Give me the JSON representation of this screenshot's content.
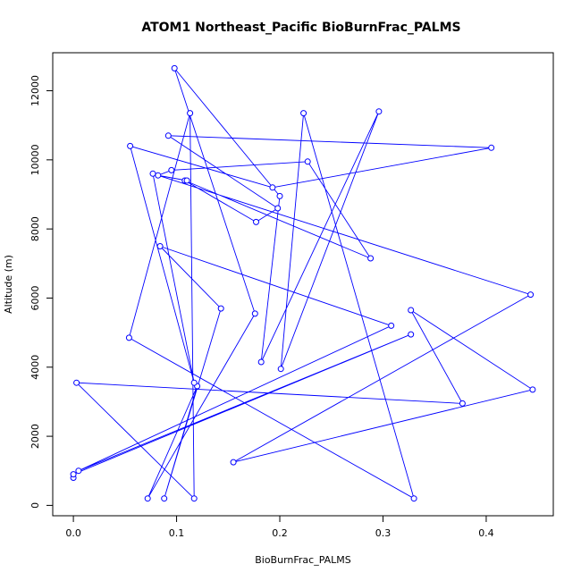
{
  "chart_data": {
    "type": "line",
    "title": "ATOM1 Northeast_Pacific BioBurnFrac_PALMS",
    "xlabel": "BioBurnFrac_PALMS",
    "ylabel": "Altitude (m)",
    "xlim": [
      -0.02,
      0.465
    ],
    "ylim": [
      -300,
      13100
    ],
    "xticks": [
      0.0,
      0.1,
      0.2,
      0.3,
      0.4
    ],
    "xtick_labels": [
      "0.0",
      "0.1",
      "0.2",
      "0.3",
      "0.4"
    ],
    "yticks": [
      0,
      2000,
      4000,
      6000,
      8000,
      10000,
      12000
    ],
    "ytick_labels": [
      "0",
      "2000",
      "4000",
      "6000",
      "8000",
      "10000",
      "12000"
    ],
    "grid": false,
    "line_color": "#0000ff",
    "marker": "open-circle",
    "series": [
      {
        "x": [
          0.0,
          0.0,
          0.327,
          0.005,
          0.308,
          0.084,
          0.143,
          0.088,
          0.12,
          0.072,
          0.176,
          0.098,
          0.2,
          0.182,
          0.296,
          0.201,
          0.223,
          0.33,
          0.054,
          0.113,
          0.117,
          0.003,
          0.377,
          0.327,
          0.445,
          0.155,
          0.443,
          0.077,
          0.117,
          0.055,
          0.193,
          0.405,
          0.092,
          0.198,
          0.177,
          0.108,
          0.288,
          0.227,
          0.095,
          0.082,
          0.11
        ],
        "y": [
          800,
          900,
          4950,
          1000,
          5200,
          7500,
          5700,
          200,
          3450,
          200,
          5550,
          12650,
          8950,
          4150,
          11400,
          3950,
          11350,
          200,
          4850,
          11350,
          200,
          3550,
          2950,
          5650,
          3350,
          1250,
          6100,
          9600,
          3550,
          10400,
          9200,
          10350,
          10700,
          8600,
          8200,
          9400,
          7150,
          9950,
          9700,
          9550,
          9400
        ]
      }
    ]
  }
}
